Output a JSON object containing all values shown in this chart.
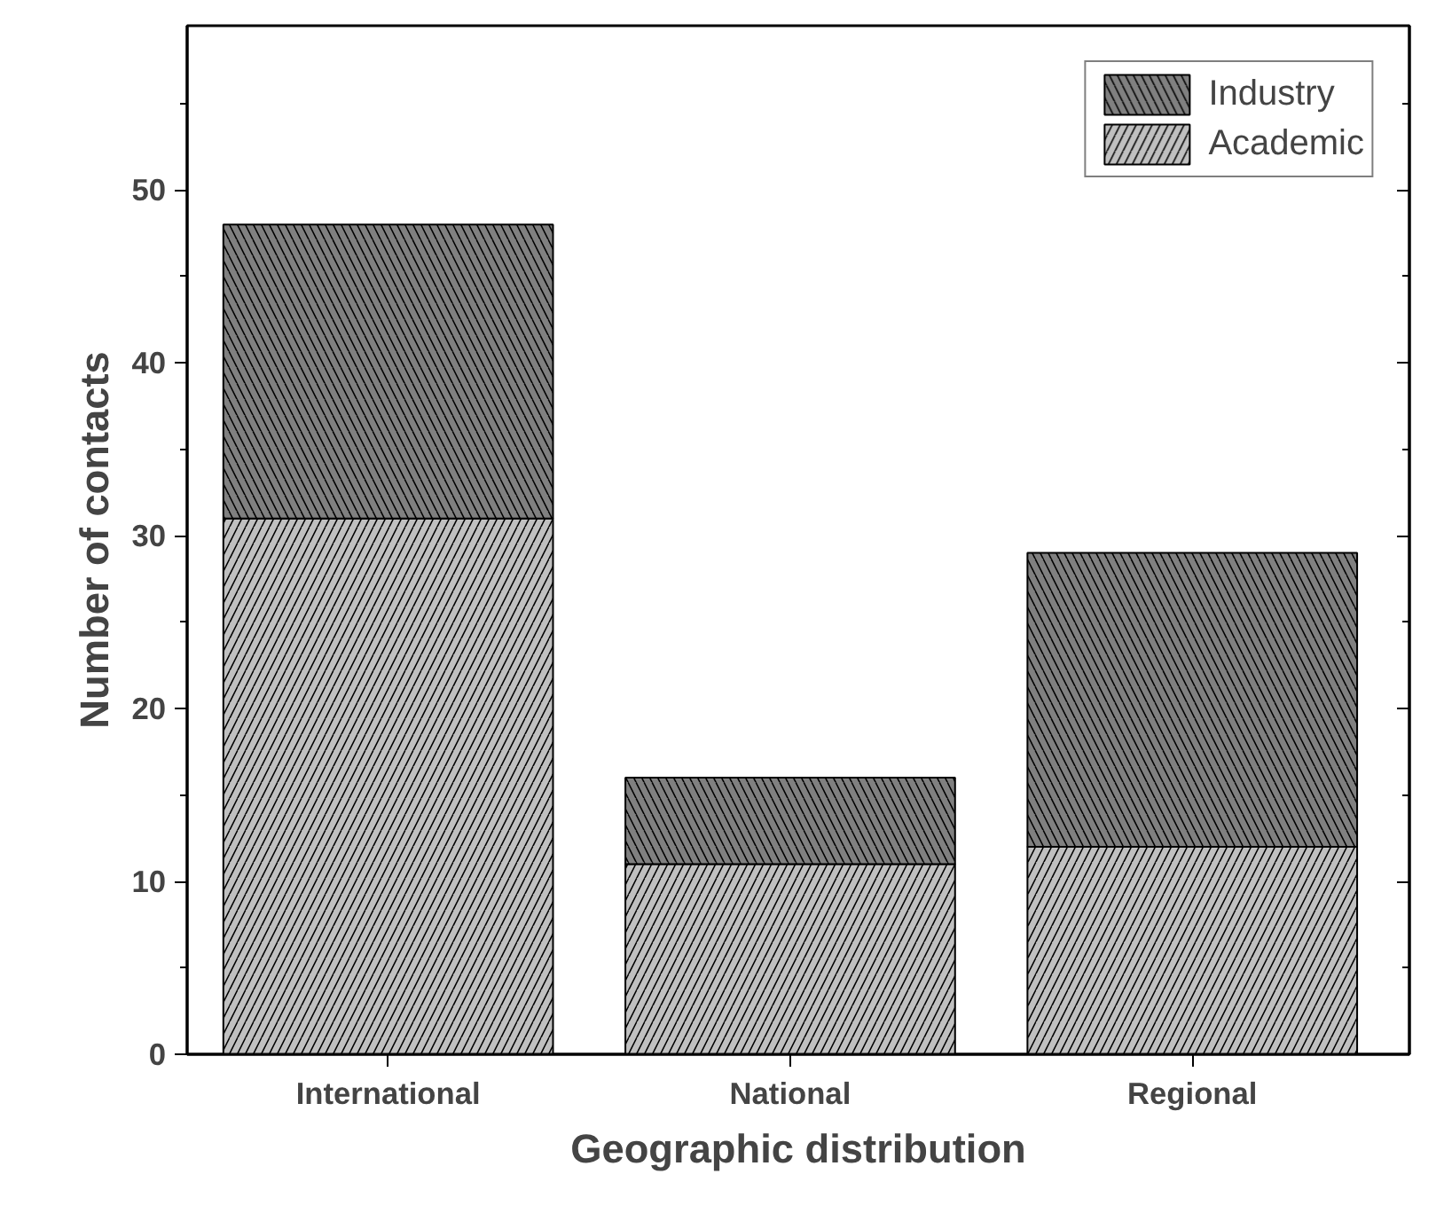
{
  "chart_data": {
    "type": "bar",
    "stacked": true,
    "xlabel": "Geographic distribution",
    "ylabel": "Number of contacts",
    "categories": [
      "International",
      "National",
      "Regional"
    ],
    "ylim": [
      0,
      59.5
    ],
    "yticks": [
      0,
      10,
      20,
      30,
      40,
      50
    ],
    "grid": false,
    "legend": "top right",
    "series": [
      {
        "name": "Academic",
        "color": "#c0c0c0",
        "values": [
          31,
          11,
          12
        ]
      },
      {
        "name": "Industry",
        "color": "#808080",
        "values": [
          17,
          5,
          17
        ]
      }
    ]
  }
}
